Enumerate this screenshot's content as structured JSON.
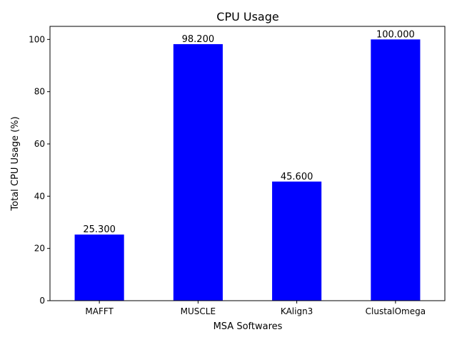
{
  "chart_data": {
    "type": "bar",
    "title": "CPU Usage",
    "xlabel": "MSA Softwares",
    "ylabel": "Total CPU Usage (%)",
    "categories": [
      "MAFFT",
      "MUSCLE",
      "KAlign3",
      "ClustalOmega"
    ],
    "values": [
      25.3,
      98.2,
      45.6,
      100.0
    ],
    "data_labels": [
      "25.300",
      "98.200",
      "45.600",
      "100.000"
    ],
    "ylim": [
      0,
      105
    ],
    "yticks": [
      0,
      20,
      40,
      60,
      80,
      100
    ],
    "bar_color": "#0000ff",
    "grid": false,
    "legend": "none"
  }
}
